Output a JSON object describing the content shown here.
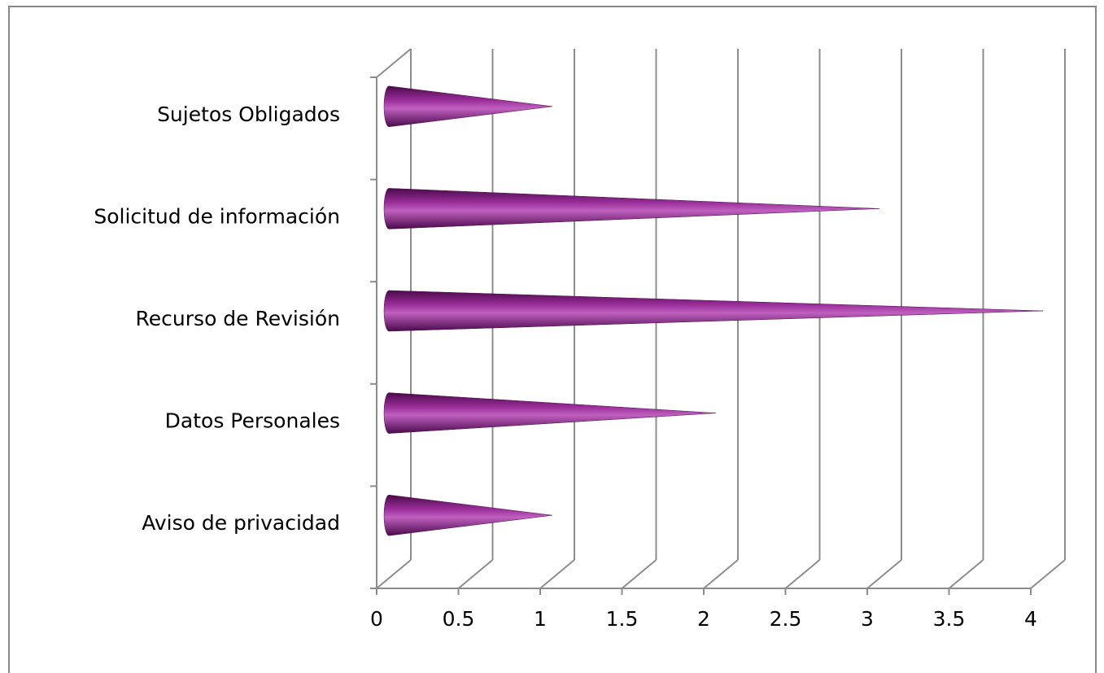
{
  "chart_data": {
    "type": "bar",
    "orientation": "horizontal",
    "style": "3d-cone",
    "categories": [
      "Aviso de privacidad",
      "Datos Personales",
      "Recurso de Revisión",
      "Solicitud de información",
      "Sujetos Obligados"
    ],
    "values": [
      1,
      2,
      4,
      3,
      1
    ],
    "xlim": [
      0,
      4
    ],
    "xticks": [
      "0",
      "0.5",
      "1",
      "1.5",
      "2",
      "2.5",
      "3",
      "3.5",
      "4"
    ],
    "grid": "vertical",
    "legend": "none",
    "colors": {
      "bar_dark": "#4a0a4a",
      "bar_mid": "#9a2e9a",
      "bar_light": "#c060c0",
      "grid": "#8c8c8c",
      "frame": "#888888"
    }
  }
}
